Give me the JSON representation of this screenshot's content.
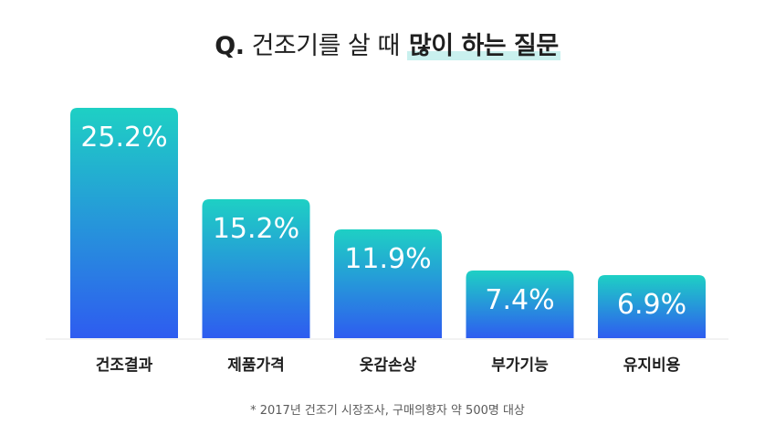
{
  "title": {
    "q": "Q.",
    "normal": "건조기를 살 때",
    "highlight": "많이 하는 질문"
  },
  "chart_data": {
    "type": "bar",
    "categories": [
      "건조결과",
      "제품가격",
      "옷감손상",
      "부가기능",
      "유지비용"
    ],
    "values": [
      25.2,
      15.2,
      11.9,
      7.4,
      6.9
    ],
    "value_labels": [
      "25.2%",
      "15.2%",
      "11.9%",
      "7.4%",
      "6.9%"
    ],
    "title": "Q. 건조기를 살 때 많이 하는 질문",
    "xlabel": "",
    "ylabel": "",
    "ylim": [
      0,
      25.2
    ],
    "grid": false,
    "colors": {
      "top": "#1ed0c4",
      "bottom": "#2e5cf0",
      "baseline": "#e6e6e6"
    }
  },
  "footnote": "* 2017년 건조기 시장조사, 구매의향자 약 500명 대상"
}
